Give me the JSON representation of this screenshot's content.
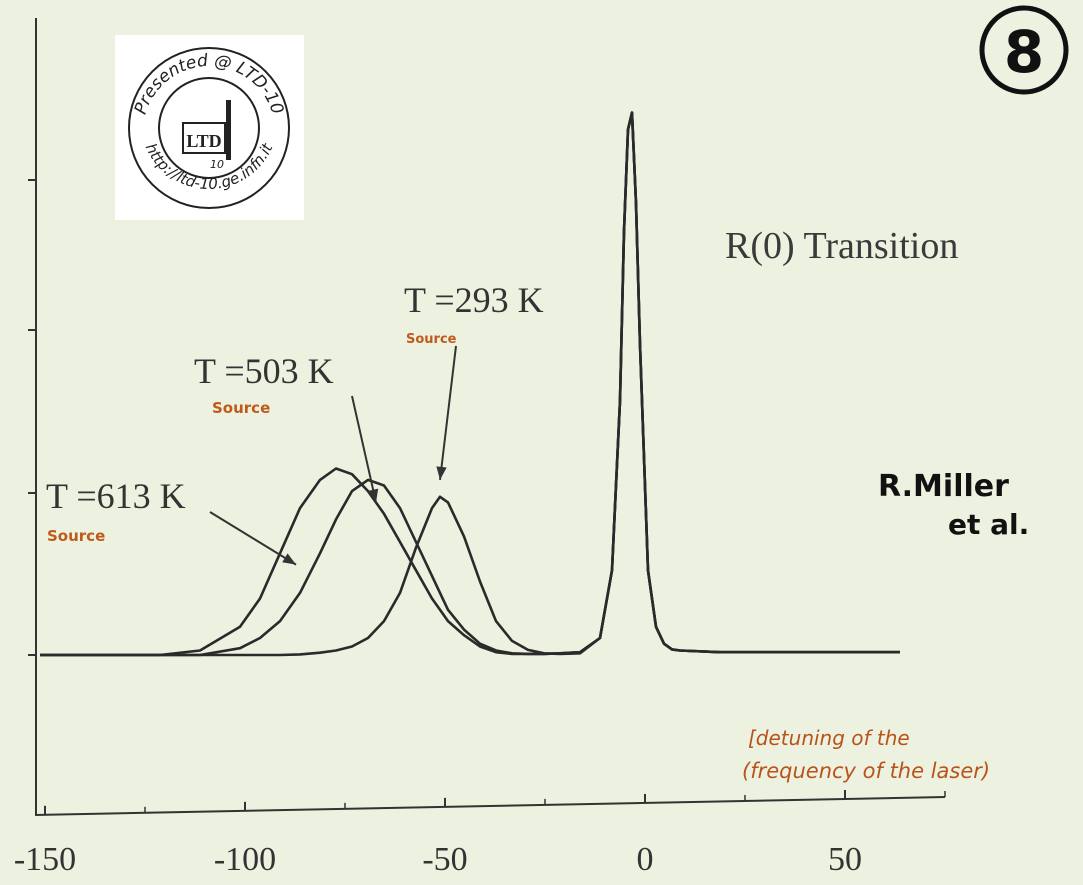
{
  "page_number": "8",
  "logo": {
    "ring_text_top": "Presented @ LTD-10",
    "ring_text_bottom": "http://ltd-10.ge.infn.it",
    "center_text": "LTD",
    "center_sub": "10"
  },
  "chart_data": {
    "type": "line",
    "title": "R(0) Transition",
    "xlabel": "",
    "ylabel": "",
    "xlim": [
      -150,
      75
    ],
    "ylim": [
      0,
      1.0
    ],
    "x_ticks": [
      -150,
      -100,
      -50,
      0,
      50
    ],
    "x_tick_labels": [
      "-150",
      "-100",
      "-50",
      "0",
      "50"
    ],
    "grid": false,
    "x": [
      -150,
      -140,
      -130,
      -120,
      -110,
      -100,
      -95,
      -90,
      -85,
      -80,
      -76,
      -72,
      -68,
      -64,
      -60,
      -56,
      -52,
      -50,
      -48,
      -44,
      -40,
      -36,
      -32,
      -28,
      -24,
      -20,
      -15,
      -10,
      -7,
      -5,
      -4,
      -3,
      -2,
      -1,
      0,
      2,
      4,
      6,
      8,
      10,
      20,
      30,
      40,
      50,
      60,
      65
    ],
    "series": [
      {
        "values": [
          0.0,
          0.0,
          0.0,
          0.0,
          0.008,
          0.05,
          0.1,
          0.18,
          0.26,
          0.31,
          0.33,
          0.32,
          0.29,
          0.25,
          0.2,
          0.15,
          0.1,
          0.08,
          0.06,
          0.035,
          0.015,
          0.005,
          0.002,
          0.002,
          0.002,
          0.003,
          0.005,
          0.03,
          0.15,
          0.45,
          0.75,
          0.93,
          0.96,
          0.8,
          0.55,
          0.15,
          0.05,
          0.02,
          0.01,
          0.008,
          0.005,
          0.005,
          0.005,
          0.005,
          0.005,
          0.005
        ]
      },
      {
        "values": [
          0.0,
          0.0,
          0.0,
          0.0,
          0.0,
          0.012,
          0.03,
          0.06,
          0.11,
          0.18,
          0.24,
          0.29,
          0.31,
          0.3,
          0.26,
          0.2,
          0.14,
          0.11,
          0.08,
          0.045,
          0.02,
          0.008,
          0.003,
          0.002,
          0.002,
          0.003,
          0.005,
          0.03,
          0.15,
          0.45,
          0.75,
          0.93,
          0.96,
          0.8,
          0.55,
          0.15,
          0.05,
          0.02,
          0.01,
          0.008,
          0.005,
          0.005,
          0.005,
          0.005,
          0.005,
          0.005
        ]
      },
      {
        "values": [
          0.0,
          0.0,
          0.0,
          0.0,
          0.0,
          0.0,
          0.0,
          0.0,
          0.001,
          0.004,
          0.008,
          0.015,
          0.03,
          0.06,
          0.11,
          0.19,
          0.26,
          0.28,
          0.27,
          0.21,
          0.13,
          0.06,
          0.025,
          0.009,
          0.003,
          0.002,
          0.003,
          0.03,
          0.15,
          0.45,
          0.75,
          0.93,
          0.96,
          0.8,
          0.55,
          0.15,
          0.05,
          0.02,
          0.01,
          0.008,
          0.005,
          0.005,
          0.005,
          0.005,
          0.005,
          0.005
        ]
      }
    ],
    "annotations": [
      {
        "text": "T =613 K",
        "sub": "Source",
        "arrow_to": [
          -86,
          0.16
        ]
      },
      {
        "text": "T =503 K",
        "sub": "Source",
        "arrow_to": [
          -66,
          0.27
        ]
      },
      {
        "text": "T =293 K",
        "sub": "Source",
        "arrow_to": [
          -50,
          0.31
        ]
      }
    ],
    "credit": [
      "R.Miller",
      "et al."
    ],
    "axis_note": [
      "[detuning of the",
      "(frequency of the laser)"
    ]
  }
}
